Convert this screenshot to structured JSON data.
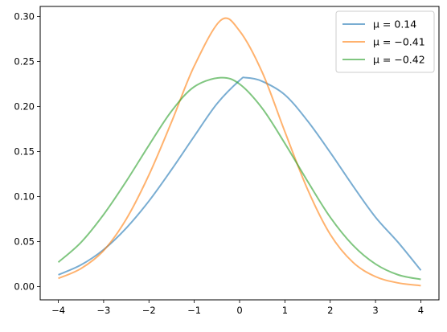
{
  "chart_data": {
    "type": "line",
    "title": "",
    "xlabel": "",
    "ylabel": "",
    "xlim": [
      -4.4,
      4.4
    ],
    "ylim": [
      -0.0148,
      0.3112
    ],
    "xticks": [
      -4,
      -3,
      -2,
      -1,
      0,
      1,
      2,
      3,
      4
    ],
    "xtick_labels": [
      "−4",
      "−3",
      "−2",
      "−1",
      "0",
      "1",
      "2",
      "3",
      "4"
    ],
    "yticks": [
      0.0,
      0.05,
      0.1,
      0.15,
      0.2,
      0.25,
      0.3
    ],
    "ytick_labels": [
      "0.00",
      "0.05",
      "0.10",
      "0.15",
      "0.20",
      "0.25",
      "0.30"
    ],
    "grid": false,
    "legend_position": "top-right",
    "series": [
      {
        "name": "μ = 0.14",
        "color": "#1f77b4",
        "x": [
          -4.0,
          -3.5,
          -3.0,
          -2.5,
          -2.0,
          -1.5,
          -1.0,
          -0.5,
          0.0,
          0.14,
          0.5,
          1.0,
          1.5,
          2.0,
          2.5,
          3.0,
          3.5,
          4.0
        ],
        "y": [
          0.013,
          0.024,
          0.041,
          0.065,
          0.095,
          0.13,
          0.167,
          0.203,
          0.229,
          0.232,
          0.228,
          0.213,
          0.184,
          0.149,
          0.112,
          0.077,
          0.049,
          0.018
        ]
      },
      {
        "name": "μ = −0.41",
        "color": "#ff7f0e",
        "x": [
          -4.0,
          -3.5,
          -3.0,
          -2.5,
          -2.0,
          -1.5,
          -1.0,
          -0.41,
          0.0,
          0.5,
          1.0,
          1.5,
          2.0,
          2.5,
          3.0,
          3.5,
          4.0
        ],
        "y": [
          0.009,
          0.02,
          0.04,
          0.075,
          0.124,
          0.183,
          0.245,
          0.296,
          0.284,
          0.238,
          0.172,
          0.108,
          0.058,
          0.027,
          0.011,
          0.004,
          0.001
        ]
      },
      {
        "name": "μ = −0.42",
        "color": "#2ca02c",
        "x": [
          -4.0,
          -3.5,
          -3.0,
          -2.5,
          -2.0,
          -1.5,
          -1.0,
          -0.42,
          0.0,
          0.5,
          1.0,
          1.5,
          2.0,
          2.5,
          3.0,
          3.5,
          4.0
        ],
        "y": [
          0.027,
          0.049,
          0.08,
          0.117,
          0.157,
          0.195,
          0.222,
          0.232,
          0.225,
          0.198,
          0.159,
          0.117,
          0.077,
          0.046,
          0.025,
          0.013,
          0.008
        ]
      }
    ]
  }
}
